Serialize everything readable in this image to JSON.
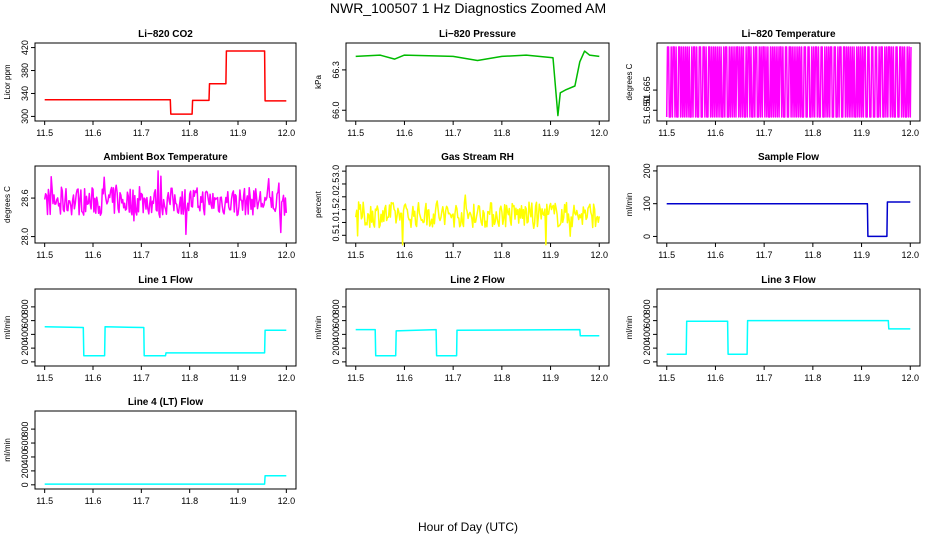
{
  "figure": {
    "title": "NWR_100507  1 Hz Diagnostics Zoomed AM",
    "xlabel": "Hour of Day (UTC)"
  },
  "chart_data": [
    {
      "id": "co2",
      "type": "line",
      "title": "Li−820 CO2",
      "ylabel": "Licor ppm",
      "color": "#ff0000",
      "xlim": [
        11.48,
        12.02
      ],
      "ylim": [
        292,
        428
      ],
      "xticks": [
        "11.5",
        "11.6",
        "11.7",
        "11.8",
        "11.9",
        "12.0"
      ],
      "yticks": [
        {
          "v": 300,
          "label": "300"
        },
        {
          "v": 340,
          "label": "340"
        },
        {
          "v": 380,
          "label": "380"
        },
        {
          "v": 420,
          "label": "420"
        }
      ],
      "series": [
        {
          "x": [
            11.5,
            11.76,
            11.761,
            11.805,
            11.806,
            11.84,
            11.841,
            11.875,
            11.876,
            11.955,
            11.956,
            12.0
          ],
          "y": [
            329,
            329,
            304,
            304,
            328,
            328,
            357,
            357,
            414,
            414,
            327,
            327
          ]
        }
      ]
    },
    {
      "id": "pressure",
      "type": "line",
      "title": "Li−820 Pressure",
      "ylabel": "kPa",
      "color": "#00bb00",
      "xlim": [
        11.48,
        12.02
      ],
      "ylim": [
        65.92,
        66.5
      ],
      "xticks": [
        "11.5",
        "11.6",
        "11.7",
        "11.8",
        "11.9",
        "12.0"
      ],
      "yticks": [
        {
          "v": 66.0,
          "label": "66.0"
        },
        {
          "v": 66.3,
          "label": "66.3"
        }
      ],
      "series": [
        {
          "x": [
            11.5,
            11.55,
            11.58,
            11.6,
            11.7,
            11.75,
            11.8,
            11.85,
            11.905,
            11.915,
            11.92,
            11.93,
            11.95,
            11.96,
            11.97,
            11.98,
            12.0
          ],
          "y": [
            66.4,
            66.41,
            66.38,
            66.41,
            66.4,
            66.37,
            66.4,
            66.41,
            66.39,
            65.96,
            66.13,
            66.15,
            66.18,
            66.36,
            66.44,
            66.41,
            66.4
          ]
        }
      ]
    },
    {
      "id": "licor_temp",
      "type": "line",
      "title": "Li−820 Temperature",
      "ylabel": "degrees C",
      "color": "#ff00ff",
      "xlim": [
        11.48,
        12.02
      ],
      "ylim": [
        51.642,
        51.7
      ],
      "xticks": [
        "11.5",
        "11.6",
        "11.7",
        "11.8",
        "11.9",
        "12.0"
      ],
      "yticks": [
        {
          "v": 51.65,
          "label": "51.650"
        },
        {
          "v": 51.665,
          "label": "51.665"
        }
      ],
      "series": [
        {
          "x": [
            11.5,
            12.0
          ],
          "y": [
            51.65,
            51.69
          ],
          "pattern": "binary",
          "low": 51.645,
          "high": 51.697
        }
      ]
    },
    {
      "id": "box_temp",
      "type": "line",
      "title": "Ambient Box Temperature",
      "ylabel": "degrees C",
      "color": "#ff00ff",
      "xlim": [
        11.48,
        12.02
      ],
      "ylim": [
        27.9,
        29.1
      ],
      "xticks": [
        "11.5",
        "11.6",
        "11.7",
        "11.8",
        "11.9",
        "12.0"
      ],
      "yticks": [
        {
          "v": 28.0,
          "label": "28.0"
        },
        {
          "v": 28.6,
          "label": "28.6"
        }
      ],
      "series": [
        {
          "x": [
            11.5,
            12.0
          ],
          "y": [
            28.55,
            28.55
          ],
          "pattern": "noise",
          "spread": 0.22
        }
      ]
    },
    {
      "id": "rh",
      "type": "line",
      "title": "Gas Stream RH",
      "ylabel": "percent",
      "color": "#ffff00",
      "xlim": [
        11.48,
        12.02
      ],
      "ylim": [
        0.2,
        3.2
      ],
      "xticks": [
        "11.5",
        "11.6",
        "11.7",
        "11.8",
        "11.9",
        "12.0"
      ],
      "yticks": [
        {
          "v": 0.5,
          "label": "0.5"
        },
        {
          "v": 1.0,
          "label": "1.0"
        },
        {
          "v": 1.5,
          "label": "1.5"
        },
        {
          "v": 2.0,
          "label": "2.0"
        },
        {
          "v": 2.5,
          "label": "2.5"
        },
        {
          "v": 3.0,
          "label": "3.0"
        }
      ],
      "series": [
        {
          "x": [
            11.5,
            12.0
          ],
          "y": [
            1.3,
            1.3
          ],
          "pattern": "noise",
          "spread": 0.5
        }
      ]
    },
    {
      "id": "sample_flow",
      "type": "line",
      "title": "Sample Flow",
      "ylabel": "ml/min",
      "color": "#0000cc",
      "xlim": [
        11.48,
        12.02
      ],
      "ylim": [
        -20,
        215
      ],
      "xticks": [
        "11.5",
        "11.6",
        "11.7",
        "11.8",
        "11.9",
        "12.0"
      ],
      "yticks": [
        {
          "v": 0,
          "label": "0"
        },
        {
          "v": 100,
          "label": "100"
        },
        {
          "v": 200,
          "label": "200"
        }
      ],
      "series": [
        {
          "x": [
            11.5,
            11.912,
            11.913,
            11.952,
            11.953,
            12.0
          ],
          "y": [
            100,
            100,
            0,
            0,
            105,
            105
          ]
        }
      ]
    },
    {
      "id": "line1",
      "type": "line",
      "title": "Line 1 Flow",
      "ylabel": "ml/min",
      "color": "#00ffff",
      "xlim": [
        11.48,
        12.02
      ],
      "ylim": [
        -60,
        1060
      ],
      "xticks": [
        "11.5",
        "11.6",
        "11.7",
        "11.8",
        "11.9",
        "12.0"
      ],
      "yticks": [
        {
          "v": 0,
          "label": "0"
        },
        {
          "v": 200,
          "label": "200"
        },
        {
          "v": 400,
          "label": "400"
        },
        {
          "v": 600,
          "label": "600"
        },
        {
          "v": 800,
          "label": "800"
        }
      ],
      "series": [
        {
          "x": [
            11.5,
            11.58,
            11.581,
            11.624,
            11.625,
            11.705,
            11.706,
            11.75,
            11.751,
            11.955,
            11.956,
            12.0
          ],
          "y": [
            510,
            500,
            90,
            90,
            510,
            500,
            90,
            90,
            130,
            130,
            460,
            460
          ]
        }
      ]
    },
    {
      "id": "line2",
      "type": "line",
      "title": "Line 2 Flow",
      "ylabel": "ml/min",
      "color": "#00ffff",
      "xlim": [
        11.48,
        12.02
      ],
      "ylim": [
        -60,
        1060
      ],
      "xticks": [
        "11.5",
        "11.6",
        "11.7",
        "11.8",
        "11.9",
        "12.0"
      ],
      "yticks": [
        {
          "v": 0,
          "label": "0"
        },
        {
          "v": 200,
          "label": "200"
        },
        {
          "v": 400,
          "label": "400"
        },
        {
          "v": 600,
          "label": "600"
        },
        {
          "v": 800,
          "label": "800"
        }
      ],
      "series": [
        {
          "x": [
            11.5,
            11.54,
            11.541,
            11.582,
            11.583,
            11.665,
            11.666,
            11.707,
            11.708,
            11.96,
            11.961,
            12.0
          ],
          "y": [
            470,
            470,
            90,
            90,
            450,
            470,
            90,
            90,
            460,
            470,
            380,
            380
          ]
        }
      ]
    },
    {
      "id": "line3",
      "type": "line",
      "title": "Line 3 Flow",
      "ylabel": "ml/min",
      "color": "#00ffff",
      "xlim": [
        11.48,
        12.02
      ],
      "ylim": [
        -60,
        1060
      ],
      "xticks": [
        "11.5",
        "11.6",
        "11.7",
        "11.8",
        "11.9",
        "12.0"
      ],
      "yticks": [
        {
          "v": 0,
          "label": "0"
        },
        {
          "v": 200,
          "label": "200"
        },
        {
          "v": 400,
          "label": "400"
        },
        {
          "v": 600,
          "label": "600"
        },
        {
          "v": 800,
          "label": "800"
        }
      ],
      "series": [
        {
          "x": [
            11.5,
            11.54,
            11.541,
            11.625,
            11.626,
            11.665,
            11.666,
            11.955,
            11.956,
            12.0
          ],
          "y": [
            110,
            110,
            590,
            590,
            110,
            110,
            600,
            600,
            480,
            480
          ]
        }
      ]
    },
    {
      "id": "line4",
      "type": "line",
      "title": "Line 4 (LT) Flow",
      "ylabel": "ml/min",
      "color": "#00ffff",
      "xlim": [
        11.48,
        12.02
      ],
      "ylim": [
        -60,
        1060
      ],
      "xticks": [
        "11.5",
        "11.6",
        "11.7",
        "11.8",
        "11.9",
        "12.0"
      ],
      "yticks": [
        {
          "v": 0,
          "label": "0"
        },
        {
          "v": 200,
          "label": "200"
        },
        {
          "v": 400,
          "label": "400"
        },
        {
          "v": 600,
          "label": "600"
        },
        {
          "v": 800,
          "label": "800"
        }
      ],
      "series": [
        {
          "x": [
            11.5,
            11.955,
            11.956,
            12.0
          ],
          "y": [
            10,
            10,
            130,
            130
          ]
        }
      ]
    }
  ]
}
